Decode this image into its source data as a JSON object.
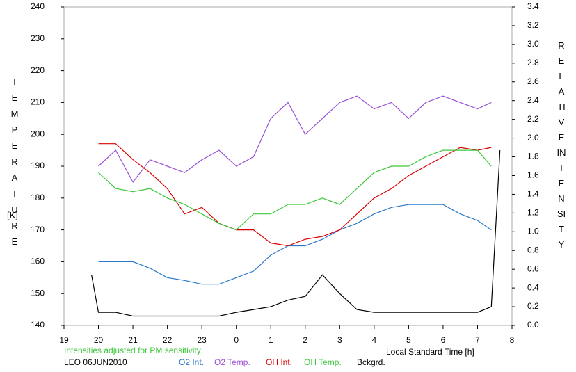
{
  "chart_data": {
    "type": "line",
    "xlabel": "Local Standard Time [h]",
    "ylabel": "TEMPERATURE",
    "ylabel_unit": "[K]",
    "y2label": "RELATIVE INTENSITY",
    "annotations": [
      "Intensities adjusted for PM sensitivity",
      "LEO 06JUN2010"
    ],
    "xlim": [
      19,
      32
    ],
    "xticks": [
      19,
      20,
      21,
      22,
      23,
      {
        "value": 24,
        "label": "0"
      },
      {
        "value": 25,
        "label": "1"
      },
      {
        "value": 26,
        "label": "2"
      },
      {
        "value": 27,
        "label": "3"
      },
      {
        "value": 28,
        "label": "4"
      },
      {
        "value": 29,
        "label": "5"
      },
      {
        "value": 30,
        "label": "6"
      },
      {
        "value": 31,
        "label": "7"
      },
      {
        "value": 32,
        "label": "8"
      }
    ],
    "ylim": [
      140,
      240
    ],
    "yticks": [
      140,
      150,
      160,
      170,
      180,
      190,
      200,
      210,
      220,
      230,
      240
    ],
    "y2lim": [
      0,
      3.4
    ],
    "y2ticks": [
      {
        "value": 0,
        "label": "0.0"
      },
      0.2,
      0.4,
      0.6,
      0.8,
      {
        "value": 1,
        "label": "1.0"
      },
      1.2,
      1.4,
      1.6,
      1.8,
      {
        "value": 2,
        "label": "2.0"
      },
      2.2,
      2.4,
      2.6,
      2.8,
      {
        "value": 3,
        "label": "3.0"
      },
      3.2,
      3.4
    ],
    "x": [
      19.8,
      20,
      20.5,
      21,
      21.5,
      22,
      22.5,
      23,
      23.5,
      24,
      24.5,
      25,
      25.5,
      26,
      26.5,
      27,
      27.5,
      28,
      28.5,
      29,
      29.5,
      30,
      30.5,
      31,
      31.4,
      31.65
    ],
    "series": [
      {
        "name": "O2 Int.",
        "color": "#2a78cc",
        "axis": "y2",
        "values": [
          null,
          0.68,
          0.68,
          0.68,
          0.61,
          0.51,
          0.48,
          0.44,
          0.44,
          0.51,
          0.58,
          0.75,
          0.85,
          0.85,
          0.92,
          1.02,
          1.09,
          1.19,
          1.26,
          1.29,
          1.29,
          1.29,
          1.19,
          1.12,
          1.02,
          null
        ]
      },
      {
        "name": "O2 Temp.",
        "color": "#9b4fd6",
        "axis": "y",
        "values": [
          null,
          190,
          195,
          185,
          192,
          190,
          188,
          192,
          195,
          190,
          193,
          205,
          210,
          200,
          205,
          210,
          212,
          208,
          210,
          205,
          210,
          212,
          210,
          208,
          210,
          null
        ]
      },
      {
        "name": "OH Int.",
        "color": "#dd0000",
        "axis": "y2",
        "values": [
          null,
          1.94,
          1.94,
          1.77,
          1.63,
          1.46,
          1.19,
          1.26,
          1.09,
          1.02,
          1.02,
          0.88,
          0.85,
          0.92,
          0.95,
          1.02,
          1.19,
          1.36,
          1.46,
          1.6,
          1.7,
          1.8,
          1.9,
          1.87,
          1.9,
          null
        ]
      },
      {
        "name": "OH Temp.",
        "color": "#3cc83c",
        "axis": "y",
        "values": [
          null,
          188,
          183,
          182,
          183,
          180,
          178,
          175,
          172,
          170,
          175,
          175,
          178,
          178,
          180,
          178,
          183,
          188,
          190,
          190,
          193,
          195,
          195,
          195,
          190,
          null
        ]
      },
      {
        "name": "Bckgrd.",
        "color": "#000000",
        "axis": "y2",
        "values": [
          0.54,
          0.14,
          0.14,
          0.1,
          0.1,
          0.1,
          0.1,
          0.1,
          0.1,
          0.14,
          0.17,
          0.2,
          0.27,
          0.31,
          0.54,
          0.34,
          0.17,
          0.14,
          0.14,
          0.14,
          0.14,
          0.14,
          0.14,
          0.14,
          0.2,
          1.87
        ]
      }
    ]
  }
}
